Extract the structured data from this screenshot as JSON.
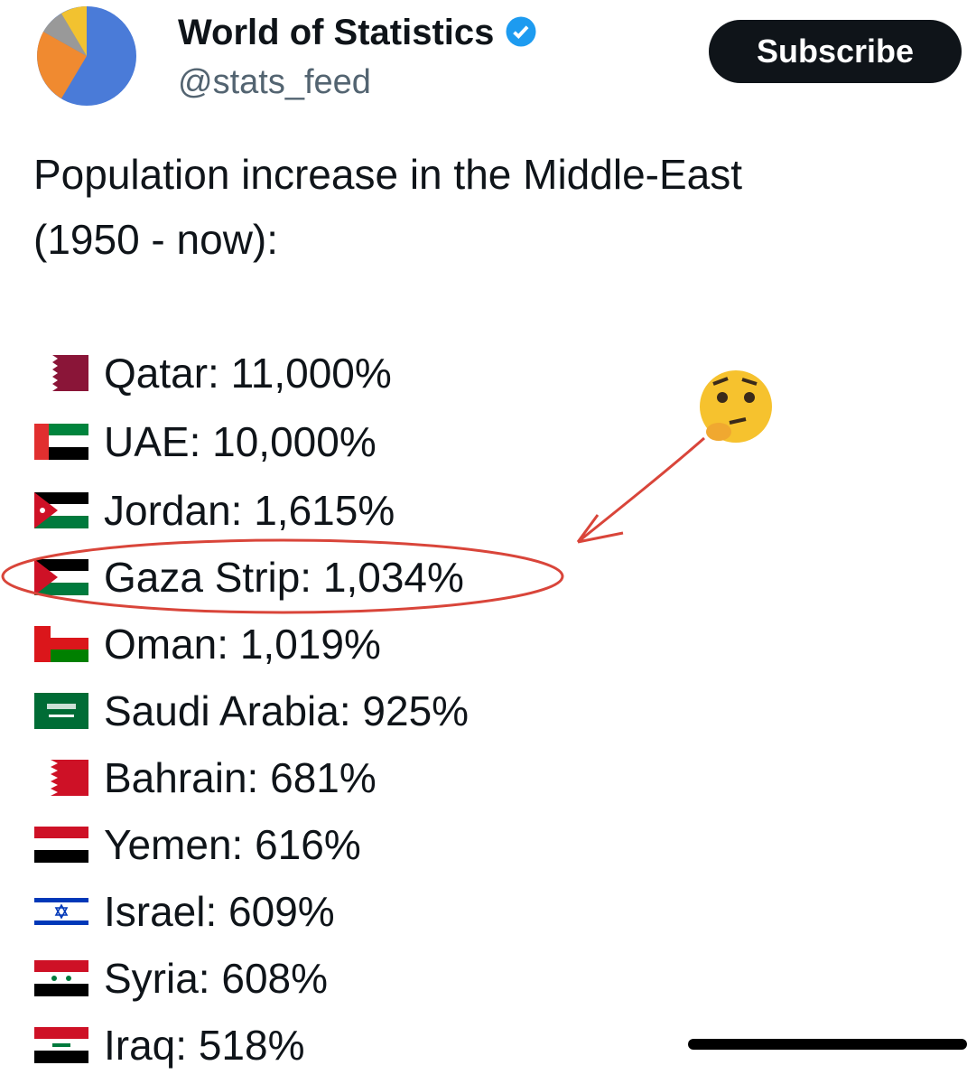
{
  "header": {
    "name": "World of Statistics",
    "handle": "@stats_feed",
    "button": "Subscribe"
  },
  "post": {
    "lines": [
      "Population increase in the Middle-East",
      "(1950 - now):"
    ],
    "items": [
      "Qatar: 11,000%",
      "UAE: 10,000%",
      "Jordan: 1,615%",
      "Gaza Strip: 1,034%",
      "Oman: 1,019%",
      "Saudi Arabia: 925%",
      "Bahrain: 681%",
      "Yemen: 616%",
      "Israel: 609%",
      "Syria: 608%",
      "Iraq: 518%"
    ]
  }
}
